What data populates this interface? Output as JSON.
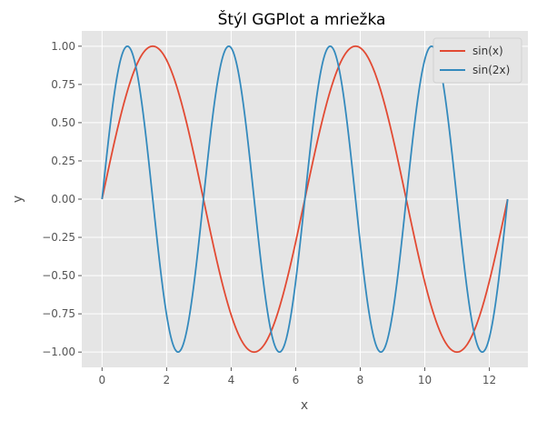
{
  "chart_data": {
    "type": "line",
    "title": "Štýl GGPlot a mriežka",
    "xlabel": "x",
    "ylabel": "y",
    "xlim": [
      -0.6283,
      13.1947
    ],
    "ylim": [
      -1.1,
      1.1
    ],
    "xticks": [
      0,
      2,
      4,
      6,
      8,
      10,
      12
    ],
    "xtick_labels": [
      "0",
      "2",
      "4",
      "6",
      "8",
      "10",
      "12"
    ],
    "yticks": [
      -1.0,
      -0.75,
      -0.5,
      -0.25,
      0.0,
      0.25,
      0.5,
      0.75,
      1.0
    ],
    "ytick_labels": [
      "−1.00",
      "−0.75",
      "−0.50",
      "−0.25",
      "0.00",
      "0.25",
      "0.50",
      "0.75",
      "1.00"
    ],
    "grid": true,
    "style": "ggplot",
    "legend_position": "top-right",
    "x_range": [
      0,
      12.566
    ],
    "series": [
      {
        "name": "sin(x)",
        "function": "sin(x)",
        "color": "#E24A33"
      },
      {
        "name": "sin(2x)",
        "function": "sin(2x)",
        "color": "#348ABD"
      }
    ]
  }
}
